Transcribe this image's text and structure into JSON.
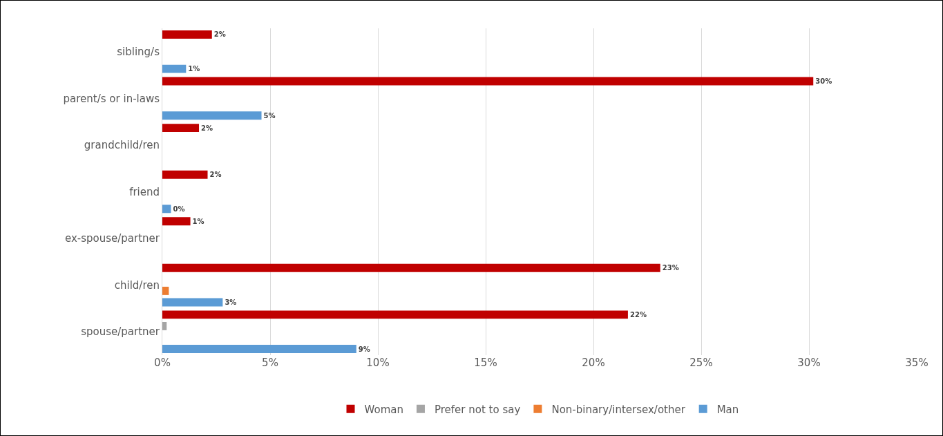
{
  "chart_data": {
    "type": "bar",
    "orientation": "horizontal",
    "categories": [
      "sibling/s",
      "parent/s or in-laws",
      "grandchild/ren",
      "friend",
      "ex-spouse/partner",
      "child/ren",
      "spouse/partner"
    ],
    "series": [
      {
        "name": "Woman",
        "color": "#c00000",
        "values": [
          2.3,
          30.2,
          1.7,
          2.1,
          1.3,
          23.1,
          21.6
        ],
        "value_labels": [
          "2%",
          "30%",
          "2%",
          "2%",
          "1%",
          "23%",
          "22%"
        ]
      },
      {
        "name": "Prefer not to say",
        "color": "#a5a5a5",
        "values": [
          null,
          null,
          null,
          null,
          null,
          null,
          0.2
        ]
      },
      {
        "name": "Non-binary/intersex/other",
        "color": "#ed7d31",
        "values": [
          null,
          null,
          null,
          null,
          null,
          0.3,
          null
        ]
      },
      {
        "name": "Man",
        "color": "#5b9bd5",
        "values": [
          1.1,
          4.6,
          null,
          0.4,
          null,
          2.8,
          9.0
        ],
        "value_labels": [
          "1%",
          "5%",
          null,
          "0%",
          null,
          "3%",
          "9%"
        ]
      }
    ],
    "xlim": [
      0,
      35
    ],
    "xticks": [
      {
        "value": 0,
        "label": "0%"
      },
      {
        "value": 5,
        "label": "5%"
      },
      {
        "value": 10,
        "label": "10%"
      },
      {
        "value": 15,
        "label": "15%"
      },
      {
        "value": 20,
        "label": "20%"
      },
      {
        "value": 25,
        "label": "25%"
      },
      {
        "value": 30,
        "label": "30%"
      },
      {
        "value": 35,
        "label": "35%"
      }
    ],
    "grid": "x",
    "legend": "bottom"
  }
}
